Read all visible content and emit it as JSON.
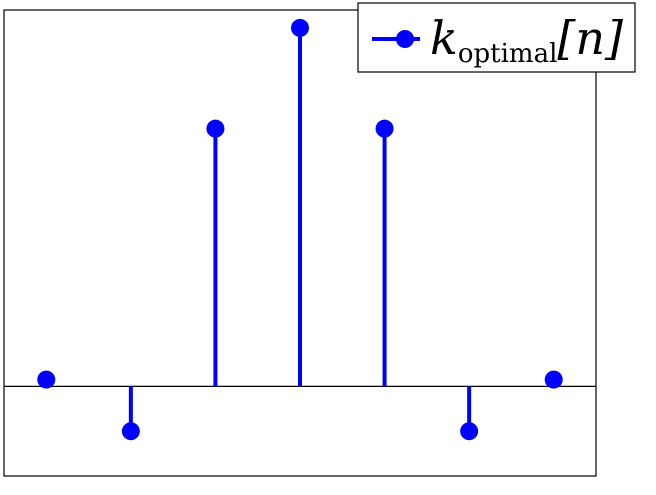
{
  "chart_data": {
    "type": "stem",
    "title": "",
    "xlabel": "",
    "ylabel": "",
    "n": [
      -3,
      -2,
      -1,
      0,
      1,
      2,
      3
    ],
    "series": [
      {
        "name": "k_optimal[n]",
        "color": "#0000ff",
        "values": [
          0.019,
          -0.125,
          0.719,
          1.0,
          0.719,
          -0.125,
          0.019
        ]
      }
    ],
    "xlim": [
      -3.5,
      3.5
    ],
    "ylim": [
      -0.25,
      1.05
    ],
    "grid": false,
    "axes_ticks": false,
    "legend": {
      "position": "top-right",
      "base": "k",
      "subscript": "optimal",
      "argument": "[n]"
    }
  }
}
